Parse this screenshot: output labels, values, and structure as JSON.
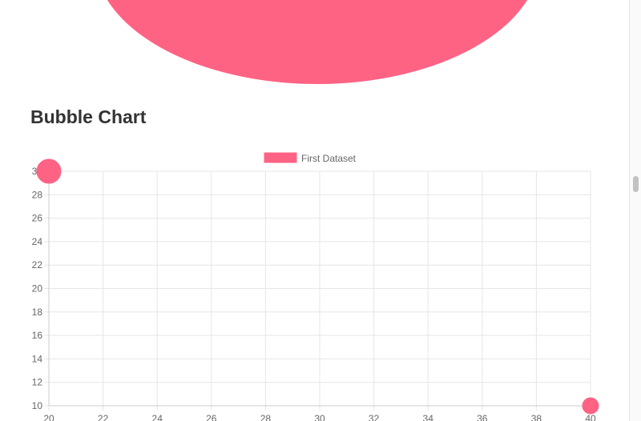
{
  "page": {
    "heading": "Bubble Chart",
    "top_bubble_color": "#ff6384"
  },
  "chart_data": {
    "type": "scatter",
    "variant": "bubble",
    "legend": {
      "label": "First Dataset",
      "position": "top"
    },
    "series": [
      {
        "name": "First Dataset",
        "color": "#ff6384",
        "points": [
          {
            "x": 20,
            "y": 30,
            "r": 15
          },
          {
            "x": 40,
            "y": 10,
            "r": 10
          }
        ]
      }
    ],
    "xlim": [
      20,
      40
    ],
    "ylim": [
      10,
      30
    ],
    "xticks": [
      "20",
      "22",
      "24",
      "26",
      "28",
      "30",
      "32",
      "34",
      "36",
      "38",
      "40"
    ],
    "yticks": [
      "10",
      "12",
      "14",
      "16",
      "18",
      "20",
      "22",
      "24",
      "26",
      "28",
      "30"
    ],
    "grid": true
  }
}
